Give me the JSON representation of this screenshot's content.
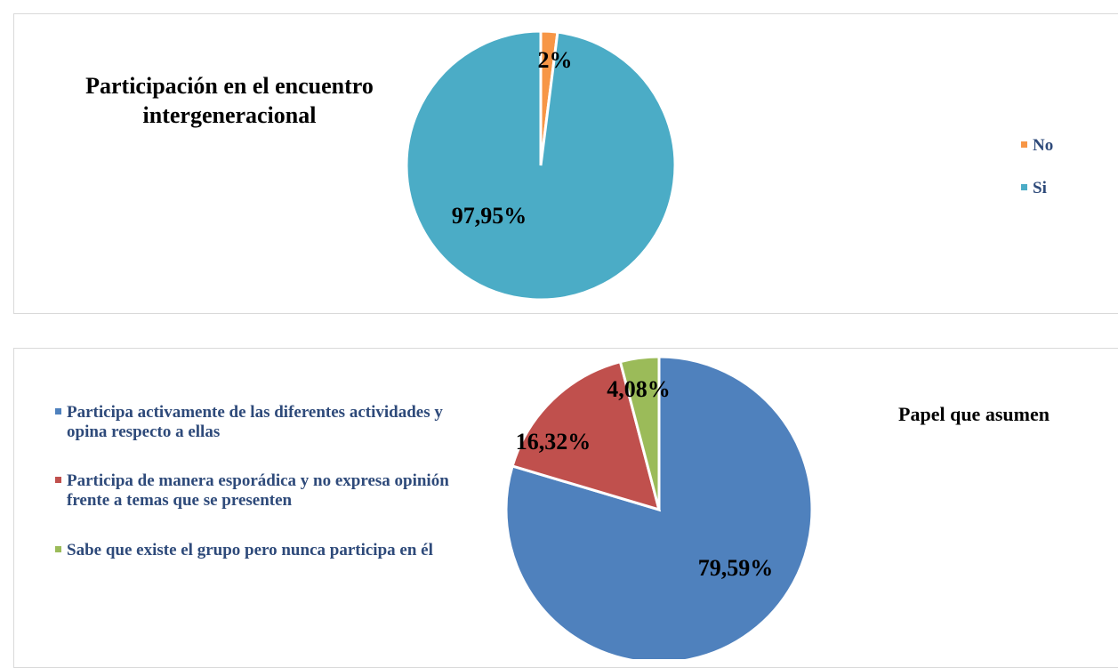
{
  "chart_data": [
    {
      "type": "pie",
      "title": "Participación en el encuentro intergeneracional",
      "categories": [
        "No",
        "Si"
      ],
      "values": [
        2,
        97.95
      ],
      "value_labels": [
        "2%",
        "97,95%"
      ],
      "colors": [
        "#f79646",
        "#4bacc6"
      ],
      "legend": "right"
    },
    {
      "type": "pie",
      "title": "Papel que asumen",
      "categories": [
        "Participa activamente de las diferentes actividades y opina respecto a ellas",
        "Participa de manera esporádica y no expresa opinión frente a temas que se presenten",
        "Sabe que existe el grupo pero nunca participa en él"
      ],
      "values": [
        79.59,
        16.32,
        4.08
      ],
      "value_labels": [
        "79,59%",
        "16,32%",
        "4,08%"
      ],
      "colors": [
        "#4f81bd",
        "#c0504d",
        "#9bbb59"
      ],
      "legend": "left"
    }
  ]
}
